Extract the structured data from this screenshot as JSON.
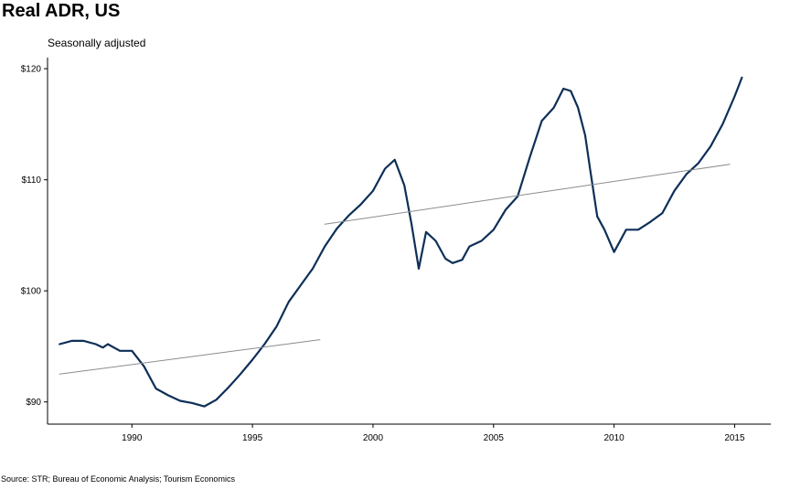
{
  "title": "Real ADR, US",
  "subtitle": "Seasonally adjusted",
  "source": "Source: STR; Bureau of Economic Analysis; Tourism Economics",
  "colors": {
    "series": "#0d2f57",
    "trend": "#8c8c8c",
    "axis": "#000000"
  },
  "chart_data": {
    "type": "line",
    "title": "Real ADR, US",
    "subtitle": "Seasonally adjusted",
    "xlabel": "",
    "ylabel": "",
    "xlim": [
      1986.5,
      2016.5
    ],
    "ylim": [
      88,
      121
    ],
    "x_ticks": [
      1990,
      1995,
      2000,
      2005,
      2010,
      2015
    ],
    "x_tick_labels": [
      "1990",
      "1995",
      "2000",
      "2005",
      "2010",
      "2015"
    ],
    "y_ticks": [
      90,
      100,
      110,
      120
    ],
    "y_tick_labels": [
      "$90",
      "$100",
      "$110",
      "$120"
    ],
    "grid": false,
    "legend": "none",
    "series": [
      {
        "role": "main",
        "x": [
          1987.0,
          1987.5,
          1988.0,
          1988.5,
          1988.8,
          1989.0,
          1989.5,
          1990.0,
          1990.5,
          1991.0,
          1991.5,
          1992.0,
          1992.5,
          1993.0,
          1993.5,
          1994.0,
          1994.5,
          1995.0,
          1995.5,
          1996.0,
          1996.5,
          1997.0,
          1997.5,
          1998.0,
          1998.5,
          1999.0,
          1999.5,
          2000.0,
          2000.5,
          2000.9,
          2001.3,
          2001.6,
          2001.9,
          2002.2,
          2002.6,
          2003.0,
          2003.3,
          2003.7,
          2004.0,
          2004.5,
          2005.0,
          2005.5,
          2006.0,
          2006.5,
          2007.0,
          2007.5,
          2007.9,
          2008.2,
          2008.5,
          2008.8,
          2009.0,
          2009.3,
          2009.6,
          2010.0,
          2010.5,
          2011.0,
          2011.5,
          2012.0,
          2012.5,
          2013.0,
          2013.5,
          2014.0,
          2014.5,
          2015.0,
          2015.3
        ],
        "values": [
          95.2,
          95.5,
          95.5,
          95.2,
          94.9,
          95.2,
          94.6,
          94.6,
          93.2,
          91.2,
          90.6,
          90.1,
          89.9,
          89.6,
          90.2,
          91.3,
          92.5,
          93.8,
          95.2,
          96.8,
          99.0,
          100.5,
          102.0,
          104.0,
          105.6,
          106.8,
          107.8,
          109.0,
          111.0,
          111.8,
          109.5,
          106.0,
          102.0,
          105.3,
          104.5,
          102.9,
          102.5,
          102.8,
          104.0,
          104.5,
          105.5,
          107.3,
          108.5,
          112.0,
          115.3,
          116.5,
          118.2,
          118.0,
          116.5,
          114.0,
          111.0,
          106.7,
          105.5,
          103.5,
          105.5,
          105.5,
          106.2,
          107.0,
          109.0,
          110.5,
          111.5,
          113.0,
          115.0,
          117.5,
          119.2
        ]
      },
      {
        "role": "trend-1987-1997",
        "x": [
          1987.0,
          1997.8
        ],
        "values": [
          92.5,
          95.6
        ]
      },
      {
        "role": "trend-1998-2014",
        "x": [
          1998.0,
          2014.8
        ],
        "values": [
          106.0,
          111.4
        ]
      }
    ]
  }
}
